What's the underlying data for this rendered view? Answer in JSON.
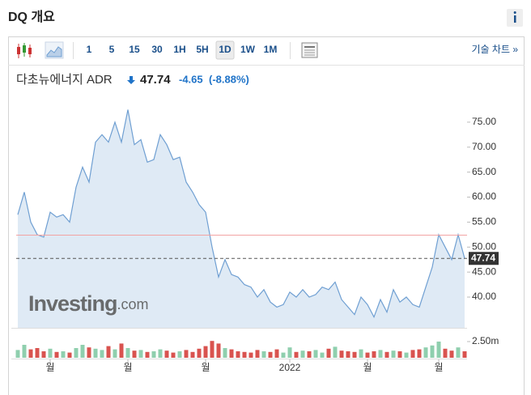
{
  "header": {
    "title": "DQ 개요"
  },
  "toolbar": {
    "intervals": [
      "1",
      "5",
      "15",
      "30",
      "1H",
      "5H",
      "1D",
      "1W",
      "1M"
    ],
    "selected": 6,
    "link": "기술 차트 »"
  },
  "quote": {
    "name": "다초뉴에너지 ADR",
    "price": "47.74",
    "change": "-4.65",
    "change_pct": "(-8.88%)"
  },
  "chart_data": {
    "type": "area",
    "watermark": {
      "brand": "Investing",
      "suffix": ".com"
    },
    "xlim": [
      0,
      69
    ],
    "xticks": [
      {
        "value": 5,
        "label": "월"
      },
      {
        "value": 17,
        "label": "월"
      },
      {
        "value": 29,
        "label": "월"
      },
      {
        "value": 42,
        "label": "2022"
      },
      {
        "value": 54,
        "label": "월"
      },
      {
        "value": 65,
        "label": "월"
      }
    ],
    "ylim": [
      33.85,
      79.2
    ],
    "yticks": [
      {
        "value": 40,
        "label": "40.00"
      },
      {
        "value": 45,
        "label": "45.00"
      },
      {
        "value": 50,
        "label": "50.00"
      },
      {
        "value": 55,
        "label": "55.00"
      },
      {
        "value": 60,
        "label": "60.00"
      },
      {
        "value": 65,
        "label": "65.00"
      },
      {
        "value": 70,
        "label": "70.00"
      },
      {
        "value": 75,
        "label": "75.00"
      }
    ],
    "reference_line": {
      "value": 52.39,
      "color": "#f2a3a3"
    },
    "series": [
      {
        "name": "DQ",
        "color": "#6f9fd2",
        "fill": "#dfeaf5",
        "values": [
          56.5,
          61,
          55,
          52.5,
          52,
          57,
          56,
          56.5,
          55,
          62,
          66,
          63,
          71,
          72.5,
          71,
          75,
          71,
          77.5,
          70.5,
          71.5,
          67,
          67.5,
          72.5,
          70.5,
          67.5,
          68,
          63,
          61,
          58.5,
          57,
          50,
          44,
          47.5,
          44.5,
          44,
          42.5,
          42,
          40,
          41.5,
          39,
          38,
          38.5,
          41,
          40,
          41.5,
          40,
          40.5,
          42,
          41.5,
          43,
          39.5,
          38,
          36.5,
          40,
          38.5,
          36,
          39.5,
          37,
          41.5,
          39,
          40,
          38.5,
          38,
          42,
          46,
          52.5,
          50,
          47.5,
          52.5,
          47.74
        ]
      }
    ],
    "volume": {
      "ylim": [
        0,
        4
      ],
      "yticks": [
        {
          "value": 2.5,
          "label": "2.50m"
        }
      ],
      "up_color": "#8fcfae",
      "down_color": "#d9534f",
      "values": [
        1.2,
        2.0,
        1.3,
        1.5,
        1.0,
        1.4,
        0.9,
        1.0,
        0.8,
        1.5,
        2.0,
        1.6,
        1.4,
        1.2,
        1.8,
        1.3,
        2.2,
        1.5,
        1.1,
        1.2,
        0.9,
        1.0,
        1.3,
        1.1,
        0.8,
        1.0,
        1.2,
        0.9,
        1.4,
        1.8,
        2.6,
        2.2,
        1.5,
        1.3,
        1.0,
        0.9,
        0.8,
        1.2,
        1.0,
        0.9,
        1.3,
        0.8,
        1.6,
        0.9,
        1.1,
        1.0,
        1.2,
        0.8,
        1.4,
        1.7,
        1.1,
        1.0,
        0.9,
        1.3,
        0.8,
        1.0,
        1.2,
        0.9,
        1.1,
        1.0,
        0.8,
        1.2,
        1.3,
        1.6,
        1.9,
        2.5,
        1.4,
        1.1,
        1.6,
        1.0
      ]
    }
  }
}
